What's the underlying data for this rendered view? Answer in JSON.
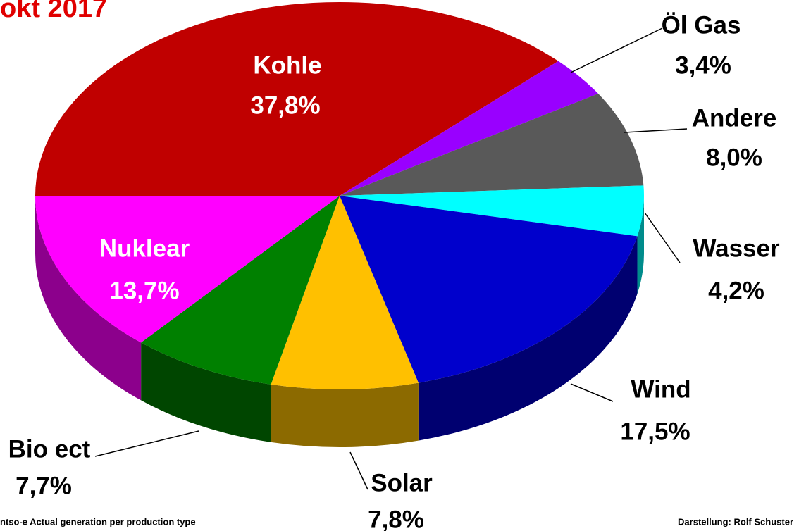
{
  "chart_data": {
    "type": "pie",
    "title": "okt 2017",
    "categories": [
      "Kohle",
      "Öl Gas",
      "Andere",
      "Wasser",
      "Wind",
      "Solar",
      "Bio ect",
      "Nuklear"
    ],
    "values": [
      37.8,
      3.4,
      8.0,
      4.2,
      17.5,
      7.8,
      7.7,
      13.7
    ],
    "value_labels": [
      "37,8%",
      "3,4%",
      "8,0%",
      "4,2%",
      "17,5%",
      "7,8%",
      "7,7%",
      "13,7%"
    ],
    "colors": [
      "#c00000",
      "#9900ff",
      "#595959",
      "#00ffff",
      "#0000cc",
      "#ffc000",
      "#008000",
      "#ff00ff"
    ],
    "source": "ntso-e  Actual generation per production type",
    "credit": "Darstellung: Rolf Schuster"
  }
}
